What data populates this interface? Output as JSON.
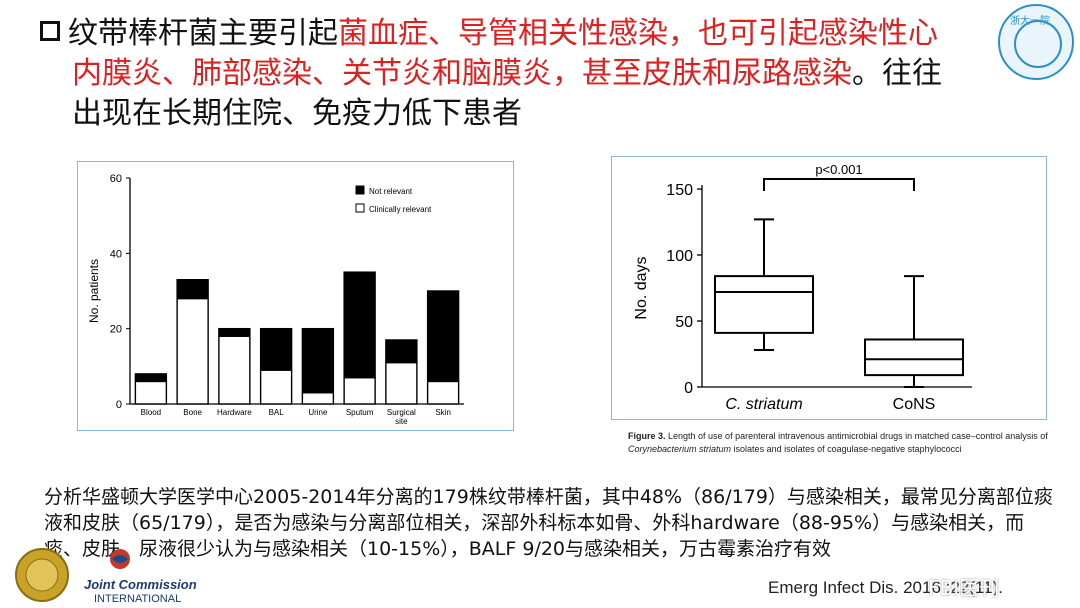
{
  "headline": {
    "part1": "纹带棒杆菌主要引起",
    "part2": "菌血症、导管相关性感染，也可引起感染性心",
    "part3": "内膜炎、肺部感染、关节炎和脑膜炎，甚至皮肤和尿路感染",
    "part4": "。往往",
    "part5": "出现在长期住院、免疫力低下患者"
  },
  "logo_text": "浙大一院",
  "chart_data": [
    {
      "type": "bar",
      "ylabel": "No. patients",
      "ylim": [
        0,
        60
      ],
      "yticks": [
        "0",
        "20",
        "40",
        "60"
      ],
      "categories": [
        "Blood",
        "Bone",
        "Hardware",
        "BAL",
        "Urine",
        "Sputum",
        "Surgical site",
        "Skin"
      ],
      "category_lines": [
        [
          "Blood"
        ],
        [
          "Bone"
        ],
        [
          "Hardware"
        ],
        [
          "BAL"
        ],
        [
          "Urine"
        ],
        [
          "Sputum"
        ],
        [
          "Surgical",
          "site"
        ],
        [
          "Skin"
        ]
      ],
      "series": [
        {
          "name": "Clinically relevant",
          "color": "#ffffff",
          "values": [
            6,
            28,
            18,
            9,
            3,
            7,
            11,
            6
          ]
        },
        {
          "name": "Not relevant",
          "color": "#000000",
          "values": [
            2,
            5,
            2,
            11,
            17,
            28,
            6,
            24
          ]
        }
      ],
      "legend": [
        "Not relevant",
        "Clinically relevant"
      ],
      "legend_position": "top-right"
    },
    {
      "type": "box",
      "ylabel": "No. days",
      "ylim": [
        0,
        150
      ],
      "yticks": [
        "0",
        "50",
        "100",
        "150"
      ],
      "categories": [
        "C. striatum",
        "CoNS"
      ],
      "boxes": [
        {
          "name": "C. striatum",
          "min": 28,
          "q1": 41,
          "median": 72,
          "q3": 84,
          "max": 127
        },
        {
          "name": "CoNS",
          "min": 0,
          "q1": 9,
          "median": 21,
          "q3": 36,
          "max": 84
        }
      ],
      "annotation": "p<0.001"
    }
  ],
  "caption": {
    "label": "Figure 3.",
    "text": " Length of use of parenteral intravenous antimicrobial drugs in matched case–control analysis of ",
    "italic1": "Corynebacterium striatum",
    "text2": " isolates and isolates of coagulase-negative staphylococci"
  },
  "body_text": "分析华盛顿大学医学中心2005-2014年分离的179株纹带棒杆菌，其中48%（86/179）与感染相关，最常见分离部位痰液和皮肤（65/179），是否为感染与分离部位相关，深部外科标本如骨、外科hardware（88-95%）与感染相关，而痰、皮肤、尿液很少认为与感染相关（10-15%），BALF 9/20与感染相关，万古霉素治疗有效",
  "jc_logo": {
    "line1": "Joint Commission",
    "line2": "INTERNATIONAL"
  },
  "citation": "Emerg Infect Dis. 2016 ;22(11).",
  "watermark": "FBI医刊"
}
